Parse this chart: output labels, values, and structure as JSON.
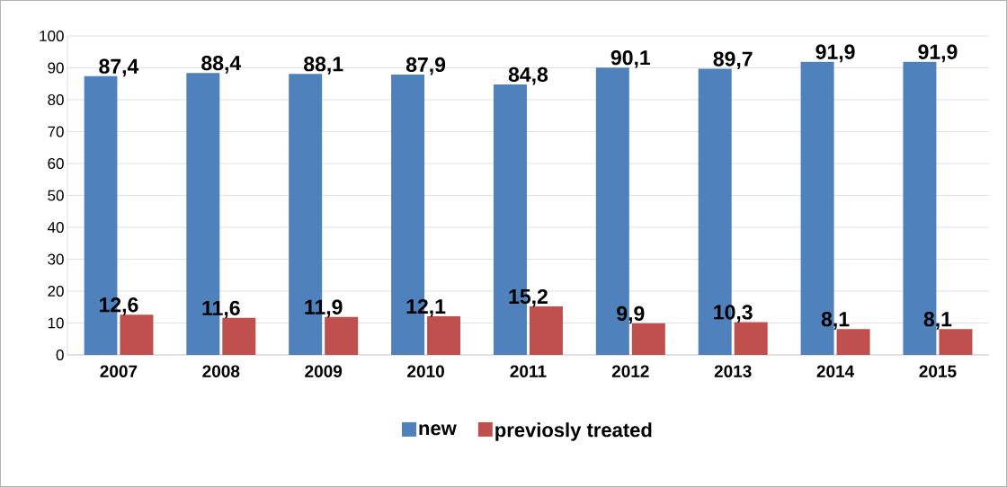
{
  "chart_data": {
    "type": "bar",
    "categories": [
      "2007",
      "2008",
      "2009",
      "2010",
      "2011",
      "2012",
      "2013",
      "2014",
      "2015"
    ],
    "series": [
      {
        "name": "new",
        "color": "#4f81bd",
        "values": [
          87.4,
          88.4,
          88.1,
          87.9,
          84.8,
          90.1,
          89.7,
          91.9,
          91.9
        ],
        "value_labels": [
          "87,4",
          "88,4",
          "88,1",
          "87,9",
          "84,8",
          "90,1",
          "89,7",
          "91,9",
          "91,9"
        ]
      },
      {
        "name": "previosly treated",
        "color": "#c0504d",
        "values": [
          12.6,
          11.6,
          11.9,
          12.1,
          15.2,
          9.9,
          10.3,
          8.1,
          8.1
        ],
        "value_labels": [
          "12,6",
          "11,6",
          "11,9",
          "12,1",
          "15,2",
          "9,9",
          "10,3",
          "8,1",
          "8,1"
        ]
      }
    ],
    "ylim": [
      0,
      100
    ],
    "yticks": [
      0,
      10,
      20,
      30,
      40,
      50,
      60,
      70,
      80,
      90,
      100
    ],
    "grid": "y",
    "legend": "bottom"
  }
}
